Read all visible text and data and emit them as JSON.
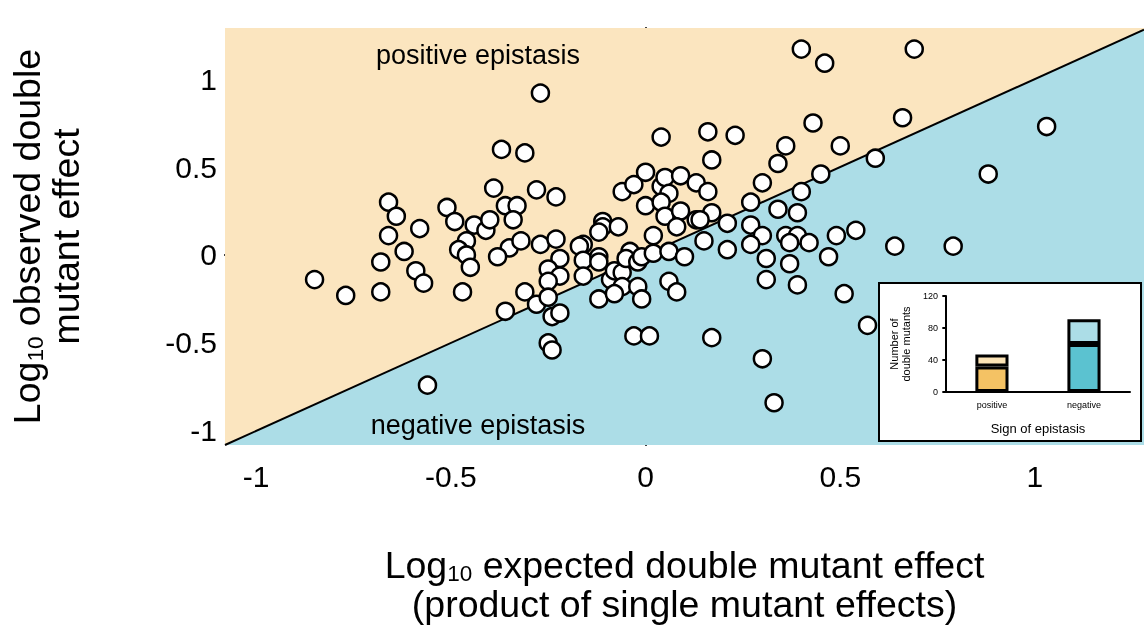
{
  "chart_data": [
    {
      "type": "scatter",
      "xlabel": "Log$_{10}$ expected double mutant effect\n(product of single mutant effects)",
      "ylabel": "Log$_{10}$ observed double\nmutant effect",
      "xlim": [
        -1.08,
        1.28
      ],
      "ylim": [
        -1.08,
        1.29
      ],
      "xticks": [
        -1,
        -0.5,
        0,
        0.5,
        1
      ],
      "yticks": [
        -1,
        -0.5,
        0,
        0.5,
        1
      ],
      "annotations": [
        "positive epistasis",
        "negative epistasis"
      ],
      "bands": [
        {
          "axis": "x",
          "from": -1.08,
          "to": 1.28,
          "color": "#fbe5bf"
        }
      ],
      "series": [
        {
          "type": "area",
          "color": "#acdde7",
          "x": [
            -1.08,
            1.28
          ],
          "values": [
            -1.08,
            1.28
          ]
        },
        {
          "type": "scatter",
          "color": "#ffffff",
          "marker": "circle",
          "x": [
            -0.85,
            -0.77,
            -0.68,
            -0.68,
            -0.66,
            -0.64,
            -0.66,
            -0.62,
            -0.58,
            -0.59,
            -0.57,
            -0.56,
            -0.51,
            -0.49,
            -0.47,
            -0.46,
            -0.48,
            -0.46,
            -0.45,
            -0.44,
            -0.41,
            -0.4,
            -0.39,
            -0.36,
            -0.33,
            -0.34,
            -0.35,
            -0.38,
            -0.32,
            -0.36,
            -0.31,
            -0.37,
            -0.31,
            -0.27,
            -0.28,
            -0.23,
            -0.27,
            -0.23,
            -0.22,
            -0.25,
            -0.22,
            -0.25,
            -0.28,
            -0.25,
            -0.24,
            -0.22,
            -0.25,
            -0.24,
            -0.16,
            -0.17,
            -0.16,
            -0.16,
            -0.12,
            -0.12,
            -0.11,
            -0.11,
            -0.12,
            -0.07,
            -0.12,
            -0.09,
            -0.08,
            -0.06,
            -0.06,
            -0.08,
            -0.04,
            -0.05,
            -0.02,
            -0.01,
            0.02,
            -0.02,
            -0.01,
            -0.03,
            0.01,
            -0.06,
            -0.03,
            0.0,
            0.0,
            0.02,
            0.04,
            0.04,
            0.05,
            0.06,
            0.04,
            0.05,
            0.09,
            0.13,
            0.09,
            0.08,
            0.13,
            0.06,
            0.1,
            0.06,
            0.08,
            0.16,
            0.23,
            0.17,
            0.16,
            0.17,
            0.14,
            0.15,
            0.21,
            0.21,
            0.27,
            0.3,
            0.34,
            0.39,
            0.27,
            0.3,
            0.36,
            0.39,
            0.42,
            0.37,
            0.27,
            0.49,
            0.54,
            0.64,
            0.47,
            0.31,
            0.37,
            0.31,
            0.39,
            0.51,
            0.57,
            0.17,
            0.3,
            0.33,
            0.34,
            0.36,
            0.43,
            0.4,
            0.46,
            0.5,
            0.59,
            0.66,
            0.45,
            0.4,
            0.69,
            0.88,
            0.79,
            1.03
          ],
          "values": [
            -0.14,
            -0.23,
            -0.21,
            -0.04,
            0.3,
            0.22,
            0.11,
            0.02,
            0.15,
            -0.09,
            -0.16,
            -0.74,
            0.27,
            0.19,
            -0.21,
            0.08,
            0.03,
            0.0,
            -0.07,
            0.17,
            0.14,
            0.2,
            0.38,
            0.28,
            0.28,
            0.2,
            0.04,
            -0.01,
            0.08,
            -0.32,
            -0.21,
            0.6,
            0.58,
            0.92,
            0.37,
            0.33,
            0.06,
            0.09,
            -0.02,
            -0.08,
            -0.12,
            -0.15,
            -0.28,
            -0.24,
            -0.35,
            -0.33,
            -0.5,
            -0.54,
            0.06,
            0.05,
            -0.03,
            -0.12,
            -0.01,
            -0.04,
            0.19,
            0.16,
            0.13,
            0.16,
            -0.25,
            -0.14,
            -0.09,
            -0.1,
            -0.18,
            -0.22,
            0.02,
            -0.02,
            -0.04,
            -0.01,
            0.01,
            -0.18,
            -0.25,
            -0.46,
            -0.46,
            0.36,
            0.4,
            0.47,
            0.28,
            0.11,
            0.67,
            0.39,
            0.44,
            0.35,
            0.3,
            0.22,
            0.45,
            0.41,
            0.25,
            0.16,
            0.2,
            0.02,
            -0.01,
            -0.15,
            -0.21,
            0.7,
            0.68,
            0.54,
            0.36,
            0.24,
            0.2,
            0.08,
            0.18,
            0.03,
            0.3,
            0.41,
            0.26,
            0.24,
            0.17,
            0.11,
            0.11,
            0.11,
            0.07,
            0.07,
            0.06,
            0.11,
            0.14,
            0.05,
            -0.01,
            -0.02,
            -0.05,
            -0.14,
            -0.17,
            -0.22,
            -0.4,
            -0.47,
            -0.59,
            -0.84,
            0.52,
            0.62,
            0.75,
            1.17,
            1.09,
            0.62,
            0.55,
            0.78,
            0.46,
            0.36,
            1.17,
            0.46,
            0.05,
            0.73
          ]
        }
      ]
    },
    {
      "type": "bar",
      "stacked": true,
      "xlabel": "Sign of epistasis",
      "ylabel": "Number of\ndouble mutants",
      "categories": [
        "positive",
        "negative"
      ],
      "ylim": [
        0,
        120
      ],
      "yticks": [
        0,
        40,
        80,
        120
      ],
      "series": [
        {
          "colors": [
            "#f4c264",
            "#5bc2d0"
          ],
          "values": [
            32,
            60
          ]
        },
        {
          "colors": [
            "#fbe3b6",
            "#acdde7"
          ],
          "values": [
            15,
            31
          ]
        }
      ]
    }
  ]
}
